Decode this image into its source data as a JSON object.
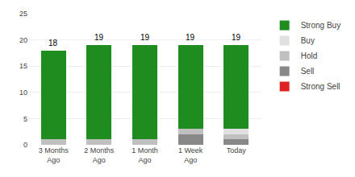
{
  "chart_data": {
    "type": "bar",
    "stacked": true,
    "categories": [
      "3 Months\nAgo",
      "2 Months\nAgo",
      "1 Month\nAgo",
      "1 Week\nAgo",
      "Today"
    ],
    "series": [
      {
        "name": "Strong Sell",
        "color": "#dd2222",
        "values": [
          0,
          0,
          0,
          0,
          0
        ]
      },
      {
        "name": "Sell",
        "color": "#888888",
        "values": [
          0,
          0,
          0,
          2,
          1
        ]
      },
      {
        "name": "Hold",
        "color": "#c0c0c0",
        "values": [
          1,
          1,
          1,
          1,
          1
        ]
      },
      {
        "name": "Buy",
        "color": "#e0e0e0",
        "values": [
          0,
          0,
          0,
          0,
          1
        ]
      },
      {
        "name": "Strong Buy",
        "color": "#1e8c1e",
        "values": [
          17,
          18,
          18,
          16,
          16
        ]
      }
    ],
    "totals": [
      18,
      19,
      19,
      19,
      19
    ],
    "ylim": [
      0,
      25
    ],
    "yticks": [
      0,
      5,
      10,
      15,
      20,
      25
    ],
    "grid": true,
    "legend": "right"
  }
}
